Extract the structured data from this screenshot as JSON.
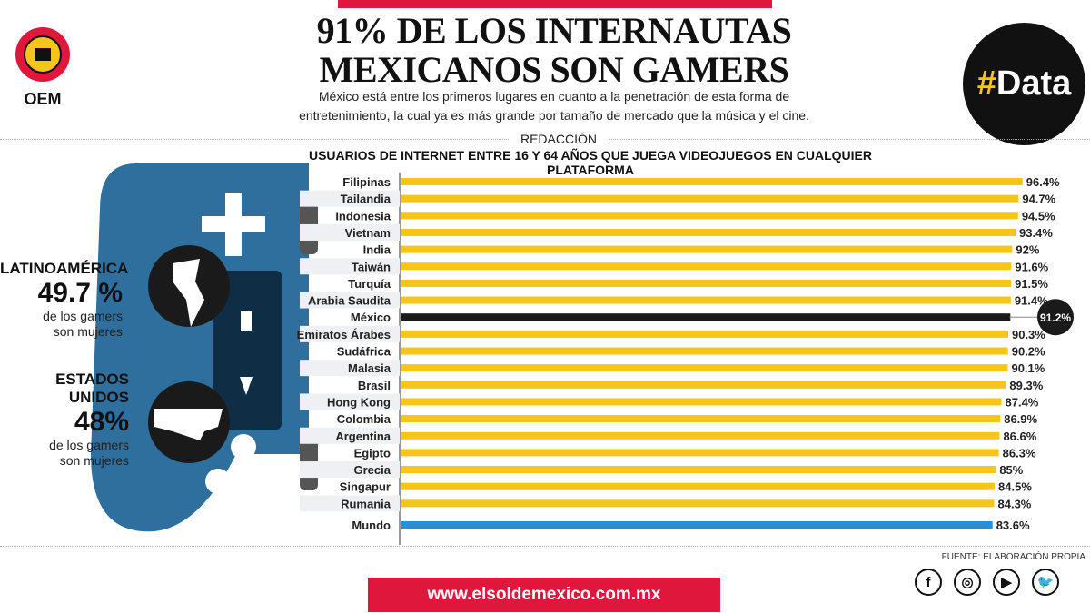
{
  "header": {
    "title_line1": "91% DE LOS INTERNAUTAS",
    "title_line2": "MEXICANOS SON GAMERS",
    "subtitle_line1": "México está entre los primeros lugares en cuanto a la penetración de esta forma de",
    "subtitle_line2": "entretenimiento, la cual ya es más grande por tamaño de mercado que la música y el cine.",
    "byline": "REDACCIÓN",
    "logo_text": "OEM",
    "badge_hash": "#",
    "badge_text": "Data"
  },
  "stats": [
    {
      "region": "LATINOAMÉRICA",
      "value": "49.7 %",
      "line1": "de los gamers",
      "line2": "son mujeres"
    },
    {
      "region": "ESTADOS UNIDOS",
      "value": "48%",
      "line1": "de los gamers",
      "line2": "son mujeres"
    }
  ],
  "chart_data": {
    "type": "bar",
    "orientation": "horizontal",
    "title": "USUARIOS DE INTERNET ENTRE 16 Y 64 AÑOS QUE JUEGA VIDEOJUEGOS EN CUALQUIER PLATAFORMA",
    "categories": [
      "Filipinas",
      "Tailandia",
      "Indonesia",
      "Vietnam",
      "India",
      "Taiwán",
      "Turquía",
      "Arabia Saudita",
      "México",
      "Emiratos Árabes",
      "Sudáfrica",
      "Malasia",
      "Brasil",
      "Hong Kong",
      "Colombia",
      "Argentina",
      "Egipto",
      "Grecia",
      "Singapur",
      "Rumania",
      "Mundo"
    ],
    "values": [
      96.4,
      94.7,
      94.5,
      93.4,
      92,
      91.6,
      91.5,
      91.4,
      91.2,
      90.3,
      90.2,
      90.1,
      89.3,
      87.4,
      86.9,
      86.6,
      86.3,
      85,
      84.5,
      84.3,
      83.6
    ],
    "labels": [
      "96.4%",
      "94.7%",
      "94.5%",
      "93.4%",
      "92%",
      "91.6%",
      "91.5%",
      "91.4%",
      "91.2%",
      "90.3%",
      "90.2%",
      "90.1%",
      "89.3%",
      "87.4%",
      "86.9%",
      "86.6%",
      "86.3%",
      "85%",
      "84.5%",
      "84.3%",
      "83.6%"
    ],
    "unit": "%",
    "highlight": "México",
    "colors": {
      "default": "#f5c518",
      "highlight": "#1a1a1a",
      "world": "#2a8fd6"
    }
  },
  "footer": {
    "source": "FUENTE: ELABORACIÓN PROPIA",
    "url": "www.elsoldemexico.com.mx",
    "social": [
      {
        "icon": "facebook-icon",
        "glyph": "f"
      },
      {
        "icon": "instagram-icon",
        "glyph": "◎"
      },
      {
        "icon": "youtube-icon",
        "glyph": "▶"
      },
      {
        "icon": "twitter-icon",
        "glyph": "🐦"
      }
    ]
  },
  "colors": {
    "accent": "#e0173c",
    "controller": "#2e6f9e"
  }
}
